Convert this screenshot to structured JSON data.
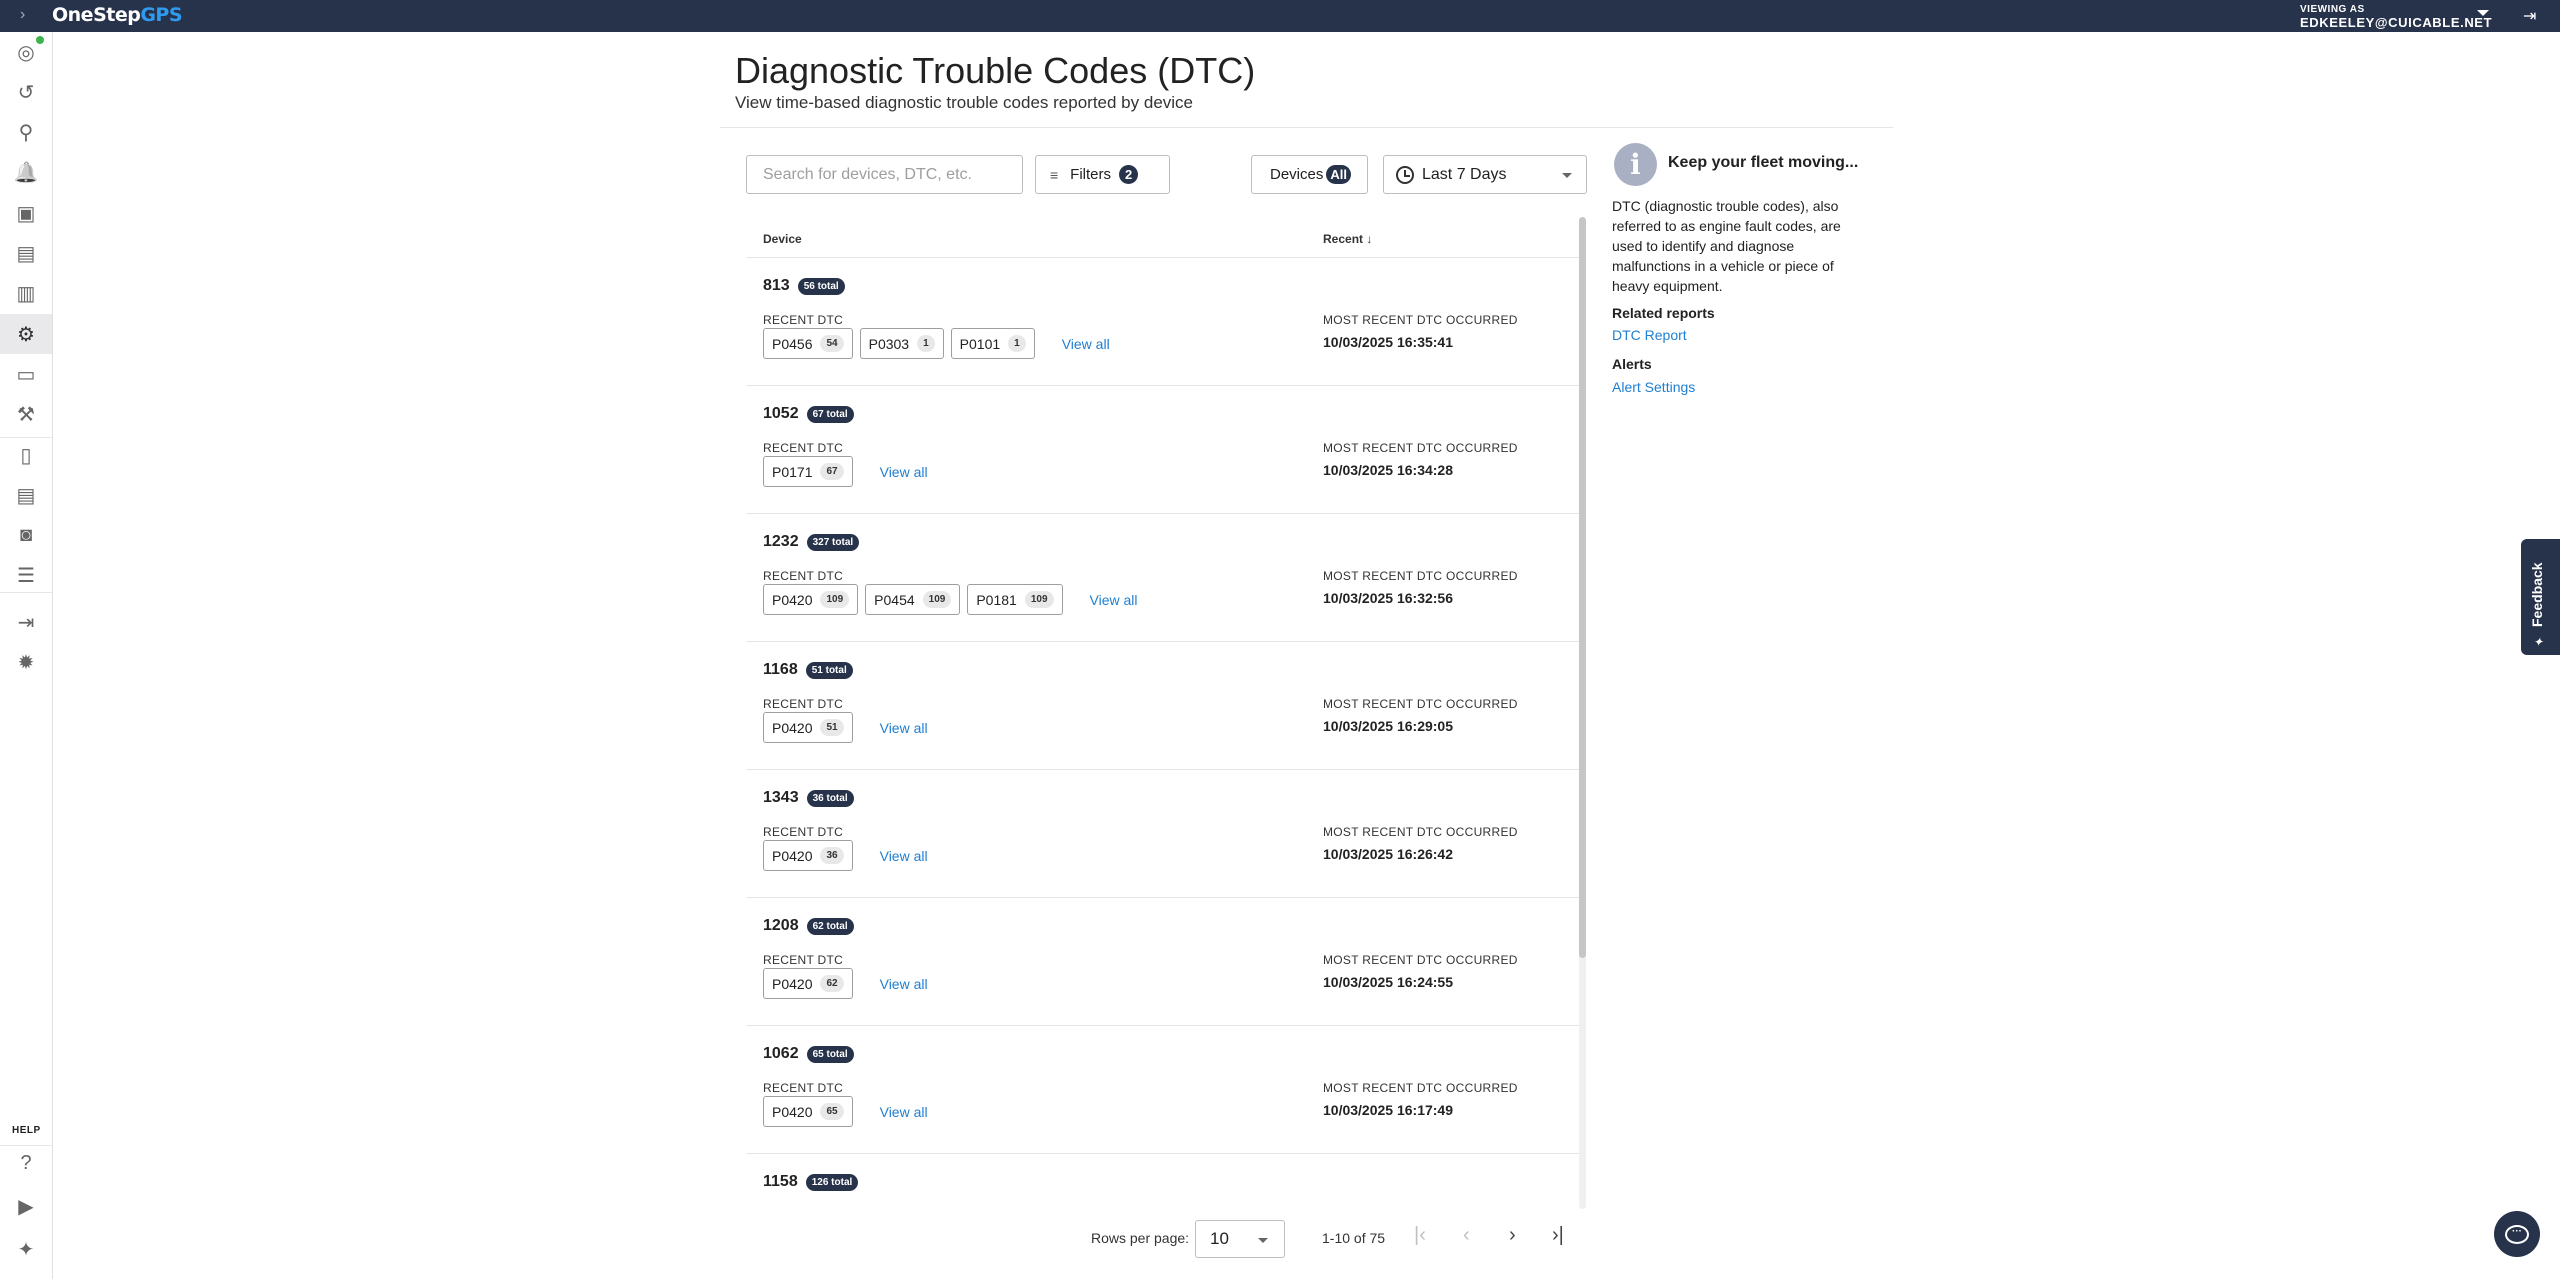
{
  "topbar": {
    "logo_one": "OneStep",
    "logo_two": "GPS",
    "viewing_label": "VIEWING AS",
    "user": "EDKEELEY@CUICABLE.NET"
  },
  "sidebar": {
    "items": [
      {
        "icon": "crosshair-location-icon"
      },
      {
        "icon": "history-icon"
      },
      {
        "icon": "map-pin-icon"
      },
      {
        "icon": "alert-bell-icon"
      },
      {
        "icon": "driver-badge-icon"
      },
      {
        "icon": "clipboard-icon"
      },
      {
        "icon": "bar-chart-icon"
      },
      {
        "icon": "engine-icon",
        "active": true
      },
      {
        "icon": "battery-icon"
      },
      {
        "icon": "maintenance-icon"
      },
      {
        "icon": "book-icon"
      },
      {
        "icon": "clipboard-list-icon"
      },
      {
        "icon": "monitor-eye-icon"
      },
      {
        "icon": "list-icon"
      },
      {
        "icon": "import-icon"
      },
      {
        "icon": "gear-icon"
      }
    ],
    "help_label": "HELP",
    "help_items": [
      {
        "icon": "help-chat-icon"
      },
      {
        "icon": "video-icon"
      },
      {
        "icon": "sparkle-icon"
      }
    ]
  },
  "page": {
    "title": "Diagnostic Trouble Codes (DTC)",
    "subtitle": "View time-based diagnostic trouble codes reported by device"
  },
  "toolbar": {
    "search_placeholder": "Search for devices, DTC, etc.",
    "filters_label": "Filters",
    "filters_count": "2",
    "devices_label": "Devices",
    "devices_value": "All",
    "date_range": "Last 7 Days"
  },
  "table": {
    "col_device": "Device",
    "col_recent": "Recent",
    "recent_dtc_label": "RECENT DTC",
    "most_recent_label": "MOST RECENT DTC OCCURRED",
    "view_all": "View all",
    "rows": [
      {
        "device": "813",
        "total": "56 total",
        "codes": [
          {
            "code": "P0456",
            "count": "54"
          },
          {
            "code": "P0303",
            "count": "1"
          },
          {
            "code": "P0101",
            "count": "1"
          }
        ],
        "date": "10/03/2025 16:35:41"
      },
      {
        "device": "1052",
        "total": "67 total",
        "codes": [
          {
            "code": "P0171",
            "count": "67"
          }
        ],
        "date": "10/03/2025 16:34:28"
      },
      {
        "device": "1232",
        "total": "327 total",
        "codes": [
          {
            "code": "P0420",
            "count": "109"
          },
          {
            "code": "P0454",
            "count": "109"
          },
          {
            "code": "P0181",
            "count": "109"
          }
        ],
        "date": "10/03/2025 16:32:56"
      },
      {
        "device": "1168",
        "total": "51 total",
        "codes": [
          {
            "code": "P0420",
            "count": "51"
          }
        ],
        "date": "10/03/2025 16:29:05"
      },
      {
        "device": "1343",
        "total": "36 total",
        "codes": [
          {
            "code": "P0420",
            "count": "36"
          }
        ],
        "date": "10/03/2025 16:26:42"
      },
      {
        "device": "1208",
        "total": "62 total",
        "codes": [
          {
            "code": "P0420",
            "count": "62"
          }
        ],
        "date": "10/03/2025 16:24:55"
      },
      {
        "device": "1062",
        "total": "65 total",
        "codes": [
          {
            "code": "P0420",
            "count": "65"
          }
        ],
        "date": "10/03/2025 16:17:49"
      },
      {
        "device": "1158",
        "total": "126 total",
        "codes": [],
        "date": ""
      }
    ]
  },
  "pagination": {
    "rows_per_page_label": "Rows per page:",
    "rows_per_page": "10",
    "range": "1-10 of 75"
  },
  "info": {
    "title": "Keep your fleet moving...",
    "body": "DTC (diagnostic trouble codes), also referred to as engine fault codes, are used to identify and diagnose malfunctions in a vehicle or piece of heavy equipment.",
    "related_heading": "Related reports",
    "related_link": "DTC Report",
    "alerts_heading": "Alerts",
    "alerts_link": "Alert Settings"
  },
  "feedback_label": "Feedback",
  "colors": {
    "navy": "#27324b",
    "link": "#1f7fd0",
    "online": "#3cb44b"
  }
}
